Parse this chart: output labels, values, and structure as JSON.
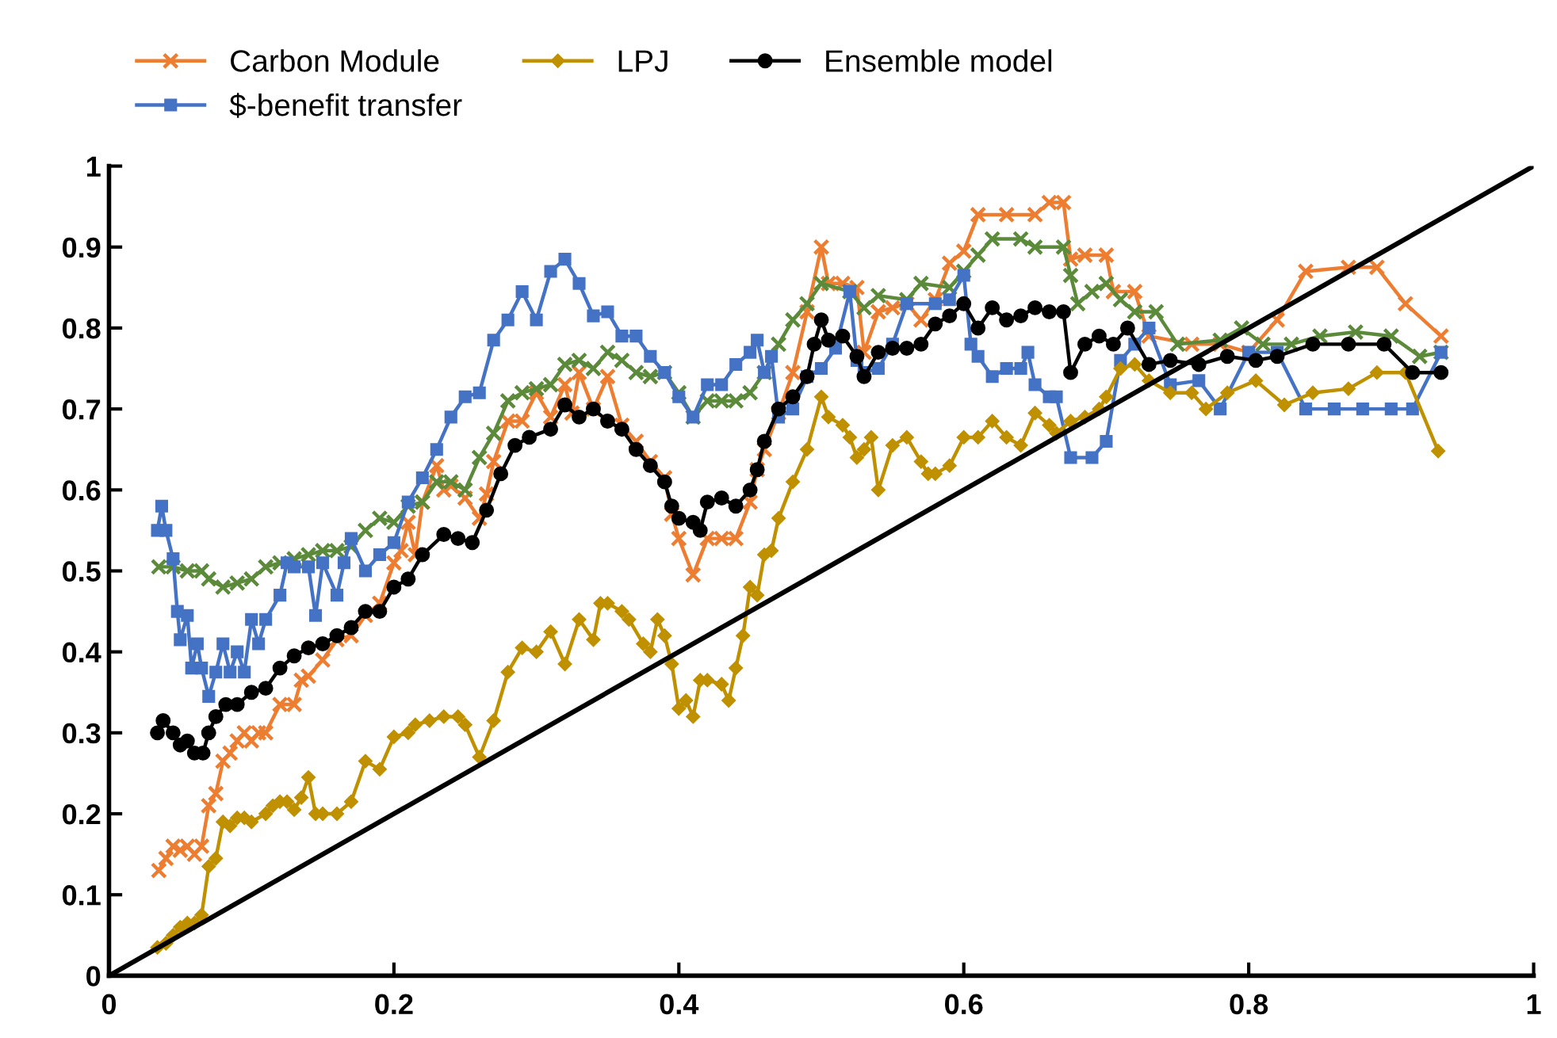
{
  "chart_data": {
    "type": "line",
    "xlim": [
      0,
      1
    ],
    "ylim": [
      0,
      1
    ],
    "xticks": [
      0,
      {
        "value": 0.2,
        "label": "0.2"
      },
      {
        "value": 0.4,
        "label": "0.4"
      },
      {
        "value": 0.6,
        "label": "0.6"
      },
      {
        "value": 0.8,
        "label": "0.8"
      },
      1
    ],
    "yticks": [
      0,
      {
        "value": 0.1,
        "label": "0.1"
      },
      {
        "value": 0.2,
        "label": "0.2"
      },
      {
        "value": 0.3,
        "label": "0.3"
      },
      {
        "value": 0.4,
        "label": "0.4"
      },
      {
        "value": 0.5,
        "label": "0.5"
      },
      {
        "value": 0.6,
        "label": "0.6"
      },
      {
        "value": 0.7,
        "label": "0.7"
      },
      {
        "value": 0.8,
        "label": "0.8"
      },
      {
        "value": 0.9,
        "label": "0.9"
      },
      1
    ],
    "grid": false,
    "legend": "top",
    "line_style": "solid",
    "series": [
      {
        "name": "Carbon Module",
        "color": "#ed7d31",
        "marker": "cross",
        "x": [
          0.035,
          0.04,
          0.045,
          0.05,
          0.055,
          0.06,
          0.065,
          0.07,
          0.075,
          0.08,
          0.085,
          0.09,
          0.095,
          0.1,
          0.105,
          0.11,
          0.12,
          0.13,
          0.135,
          0.14,
          0.15,
          0.16,
          0.17,
          0.18,
          0.19,
          0.2,
          0.205,
          0.21,
          0.215,
          0.22,
          0.23,
          0.235,
          0.24,
          0.25,
          0.26,
          0.265,
          0.27,
          0.28,
          0.29,
          0.3,
          0.31,
          0.32,
          0.325,
          0.33,
          0.34,
          0.35,
          0.36,
          0.37,
          0.38,
          0.39,
          0.395,
          0.4,
          0.41,
          0.42,
          0.43,
          0.44,
          0.45,
          0.455,
          0.46,
          0.47,
          0.48,
          0.49,
          0.5,
          0.505,
          0.515,
          0.525,
          0.53,
          0.54,
          0.55,
          0.56,
          0.57,
          0.58,
          0.59,
          0.6,
          0.61,
          0.63,
          0.65,
          0.66,
          0.67,
          0.675,
          0.685,
          0.7,
          0.705,
          0.72,
          0.73,
          0.76,
          0.78,
          0.8,
          0.82,
          0.84,
          0.87,
          0.89,
          0.91,
          0.935
        ],
        "values": [
          0.13,
          0.145,
          0.16,
          0.155,
          0.16,
          0.15,
          0.16,
          0.21,
          0.225,
          0.265,
          0.275,
          0.29,
          0.3,
          0.29,
          0.3,
          0.3,
          0.335,
          0.335,
          0.365,
          0.37,
          0.39,
          0.415,
          0.42,
          0.445,
          0.46,
          0.51,
          0.525,
          0.56,
          0.52,
          0.585,
          0.63,
          0.6,
          0.605,
          0.59,
          0.565,
          0.595,
          0.635,
          0.685,
          0.685,
          0.72,
          0.69,
          0.73,
          0.695,
          0.745,
          0.7,
          0.74,
          0.68,
          0.66,
          0.635,
          0.615,
          0.57,
          0.54,
          0.495,
          0.54,
          0.54,
          0.54,
          0.585,
          0.625,
          0.65,
          0.695,
          0.745,
          0.82,
          0.9,
          0.855,
          0.855,
          0.85,
          0.77,
          0.82,
          0.825,
          0.83,
          0.81,
          0.835,
          0.88,
          0.895,
          0.94,
          0.94,
          0.94,
          0.955,
          0.955,
          0.885,
          0.89,
          0.89,
          0.845,
          0.845,
          0.79,
          0.78,
          0.78,
          0.77,
          0.81,
          0.87,
          0.875,
          0.875,
          0.83,
          0.79
        ]
      },
      {
        "color": "#5b8a3a",
        "marker": "cross",
        "x": [
          0.035,
          0.045,
          0.055,
          0.065,
          0.07,
          0.08,
          0.09,
          0.1,
          0.11,
          0.12,
          0.13,
          0.14,
          0.15,
          0.16,
          0.17,
          0.18,
          0.19,
          0.2,
          0.21,
          0.22,
          0.23,
          0.24,
          0.25,
          0.26,
          0.27,
          0.28,
          0.29,
          0.3,
          0.31,
          0.32,
          0.33,
          0.34,
          0.35,
          0.36,
          0.37,
          0.38,
          0.39,
          0.4,
          0.41,
          0.42,
          0.43,
          0.44,
          0.45,
          0.46,
          0.47,
          0.48,
          0.49,
          0.5,
          0.52,
          0.53,
          0.54,
          0.56,
          0.57,
          0.59,
          0.6,
          0.61,
          0.62,
          0.64,
          0.65,
          0.67,
          0.675,
          0.68,
          0.69,
          0.7,
          0.71,
          0.72,
          0.735,
          0.75,
          0.78,
          0.795,
          0.81,
          0.83,
          0.85,
          0.875,
          0.9,
          0.92,
          0.935
        ],
        "values": [
          0.505,
          0.505,
          0.5,
          0.5,
          0.49,
          0.48,
          0.485,
          0.49,
          0.505,
          0.51,
          0.515,
          0.52,
          0.525,
          0.525,
          0.53,
          0.55,
          0.565,
          0.56,
          0.58,
          0.585,
          0.61,
          0.61,
          0.6,
          0.64,
          0.67,
          0.71,
          0.72,
          0.725,
          0.73,
          0.755,
          0.76,
          0.75,
          0.77,
          0.76,
          0.745,
          0.74,
          0.745,
          0.72,
          0.69,
          0.71,
          0.71,
          0.71,
          0.72,
          0.745,
          0.78,
          0.81,
          0.83,
          0.855,
          0.845,
          0.825,
          0.84,
          0.835,
          0.855,
          0.85,
          0.87,
          0.89,
          0.91,
          0.91,
          0.9,
          0.9,
          0.865,
          0.83,
          0.845,
          0.855,
          0.835,
          0.82,
          0.82,
          0.78,
          0.785,
          0.8,
          0.78,
          0.78,
          0.79,
          0.795,
          0.79,
          0.765,
          0.77
        ]
      },
      {
        "name": "$-benefit transfer",
        "color": "#4472c4",
        "marker": "square",
        "x": [
          0.034,
          0.037,
          0.04,
          0.045,
          0.048,
          0.05,
          0.055,
          0.058,
          0.062,
          0.065,
          0.07,
          0.075,
          0.08,
          0.085,
          0.09,
          0.095,
          0.1,
          0.105,
          0.11,
          0.12,
          0.125,
          0.13,
          0.14,
          0.145,
          0.15,
          0.16,
          0.165,
          0.17,
          0.18,
          0.19,
          0.2,
          0.21,
          0.22,
          0.23,
          0.24,
          0.25,
          0.26,
          0.27,
          0.28,
          0.29,
          0.3,
          0.31,
          0.32,
          0.33,
          0.34,
          0.35,
          0.36,
          0.37,
          0.38,
          0.39,
          0.4,
          0.41,
          0.42,
          0.43,
          0.44,
          0.45,
          0.455,
          0.46,
          0.465,
          0.47,
          0.48,
          0.49,
          0.5,
          0.51,
          0.52,
          0.525,
          0.53,
          0.54,
          0.55,
          0.56,
          0.58,
          0.59,
          0.6,
          0.605,
          0.61,
          0.62,
          0.63,
          0.64,
          0.645,
          0.65,
          0.66,
          0.665,
          0.675,
          0.69,
          0.7,
          0.71,
          0.72,
          0.73,
          0.745,
          0.765,
          0.78,
          0.8,
          0.82,
          0.84,
          0.86,
          0.88,
          0.9,
          0.915,
          0.935
        ],
        "values": [
          0.55,
          0.58,
          0.55,
          0.515,
          0.45,
          0.415,
          0.445,
          0.38,
          0.41,
          0.38,
          0.345,
          0.375,
          0.41,
          0.375,
          0.4,
          0.375,
          0.44,
          0.41,
          0.44,
          0.47,
          0.51,
          0.505,
          0.505,
          0.445,
          0.51,
          0.47,
          0.51,
          0.54,
          0.5,
          0.52,
          0.535,
          0.585,
          0.615,
          0.65,
          0.69,
          0.715,
          0.72,
          0.785,
          0.81,
          0.845,
          0.81,
          0.87,
          0.885,
          0.855,
          0.815,
          0.82,
          0.79,
          0.79,
          0.765,
          0.745,
          0.715,
          0.69,
          0.73,
          0.73,
          0.755,
          0.77,
          0.785,
          0.745,
          0.765,
          0.69,
          0.7,
          0.74,
          0.75,
          0.775,
          0.845,
          0.76,
          0.745,
          0.75,
          0.78,
          0.83,
          0.83,
          0.835,
          0.865,
          0.78,
          0.765,
          0.74,
          0.75,
          0.75,
          0.77,
          0.73,
          0.715,
          0.715,
          0.64,
          0.64,
          0.66,
          0.76,
          0.78,
          0.8,
          0.73,
          0.735,
          0.7,
          0.77,
          0.77,
          0.7,
          0.7,
          0.7,
          0.7,
          0.7,
          0.77
        ]
      },
      {
        "name": "LPJ",
        "color": "#bf9000",
        "marker": "diamond",
        "x": [
          0.034,
          0.04,
          0.045,
          0.05,
          0.055,
          0.06,
          0.065,
          0.07,
          0.075,
          0.08,
          0.085,
          0.09,
          0.095,
          0.1,
          0.11,
          0.115,
          0.12,
          0.125,
          0.13,
          0.135,
          0.14,
          0.145,
          0.15,
          0.16,
          0.17,
          0.18,
          0.19,
          0.2,
          0.21,
          0.215,
          0.225,
          0.235,
          0.245,
          0.25,
          0.26,
          0.27,
          0.28,
          0.29,
          0.3,
          0.31,
          0.32,
          0.33,
          0.34,
          0.345,
          0.35,
          0.36,
          0.365,
          0.375,
          0.38,
          0.385,
          0.39,
          0.395,
          0.4,
          0.405,
          0.41,
          0.415,
          0.42,
          0.43,
          0.435,
          0.44,
          0.445,
          0.45,
          0.455,
          0.46,
          0.465,
          0.47,
          0.48,
          0.49,
          0.5,
          0.505,
          0.515,
          0.52,
          0.525,
          0.53,
          0.535,
          0.54,
          0.55,
          0.56,
          0.57,
          0.575,
          0.58,
          0.59,
          0.6,
          0.61,
          0.62,
          0.63,
          0.64,
          0.65,
          0.66,
          0.665,
          0.675,
          0.685,
          0.695,
          0.7,
          0.71,
          0.72,
          0.73,
          0.745,
          0.76,
          0.77,
          0.785,
          0.805,
          0.825,
          0.845,
          0.87,
          0.89,
          0.91,
          0.933
        ],
        "values": [
          0.035,
          0.04,
          0.05,
          0.06,
          0.065,
          0.065,
          0.075,
          0.135,
          0.145,
          0.19,
          0.185,
          0.195,
          0.195,
          0.19,
          0.2,
          0.21,
          0.215,
          0.215,
          0.205,
          0.22,
          0.245,
          0.2,
          0.2,
          0.2,
          0.215,
          0.265,
          0.255,
          0.295,
          0.3,
          0.31,
          0.315,
          0.32,
          0.32,
          0.31,
          0.27,
          0.315,
          0.375,
          0.405,
          0.4,
          0.425,
          0.385,
          0.44,
          0.415,
          0.46,
          0.46,
          0.45,
          0.44,
          0.41,
          0.4,
          0.44,
          0.42,
          0.385,
          0.33,
          0.34,
          0.32,
          0.365,
          0.365,
          0.36,
          0.34,
          0.38,
          0.42,
          0.48,
          0.47,
          0.52,
          0.525,
          0.565,
          0.61,
          0.65,
          0.715,
          0.69,
          0.68,
          0.665,
          0.64,
          0.65,
          0.665,
          0.6,
          0.655,
          0.665,
          0.635,
          0.62,
          0.62,
          0.63,
          0.665,
          0.665,
          0.685,
          0.665,
          0.655,
          0.695,
          0.68,
          0.67,
          0.685,
          0.69,
          0.7,
          0.715,
          0.75,
          0.755,
          0.735,
          0.72,
          0.72,
          0.7,
          0.72,
          0.735,
          0.705,
          0.72,
          0.725,
          0.745,
          0.745,
          0.648
        ]
      },
      {
        "name": "Ensemble model",
        "color": "#000000",
        "marker": "circle",
        "x": [
          0.034,
          0.038,
          0.045,
          0.05,
          0.055,
          0.06,
          0.066,
          0.07,
          0.075,
          0.082,
          0.09,
          0.1,
          0.11,
          0.12,
          0.13,
          0.14,
          0.15,
          0.16,
          0.17,
          0.18,
          0.19,
          0.2,
          0.21,
          0.22,
          0.235,
          0.245,
          0.255,
          0.265,
          0.275,
          0.285,
          0.295,
          0.31,
          0.32,
          0.33,
          0.34,
          0.35,
          0.36,
          0.37,
          0.38,
          0.39,
          0.395,
          0.4,
          0.41,
          0.415,
          0.42,
          0.43,
          0.44,
          0.45,
          0.455,
          0.46,
          0.47,
          0.48,
          0.49,
          0.495,
          0.5,
          0.505,
          0.515,
          0.525,
          0.53,
          0.54,
          0.55,
          0.56,
          0.57,
          0.58,
          0.59,
          0.6,
          0.61,
          0.62,
          0.63,
          0.64,
          0.65,
          0.66,
          0.67,
          0.675,
          0.685,
          0.695,
          0.705,
          0.715,
          0.73,
          0.745,
          0.765,
          0.785,
          0.805,
          0.82,
          0.845,
          0.87,
          0.895,
          0.915,
          0.935
        ],
        "values": [
          0.3,
          0.315,
          0.3,
          0.285,
          0.29,
          0.275,
          0.275,
          0.3,
          0.32,
          0.335,
          0.335,
          0.35,
          0.355,
          0.38,
          0.395,
          0.405,
          0.41,
          0.42,
          0.43,
          0.45,
          0.45,
          0.48,
          0.49,
          0.52,
          0.545,
          0.54,
          0.535,
          0.575,
          0.62,
          0.655,
          0.665,
          0.675,
          0.705,
          0.69,
          0.7,
          0.685,
          0.675,
          0.65,
          0.63,
          0.61,
          0.58,
          0.565,
          0.56,
          0.55,
          0.585,
          0.59,
          0.58,
          0.6,
          0.625,
          0.66,
          0.7,
          0.715,
          0.74,
          0.78,
          0.81,
          0.785,
          0.79,
          0.765,
          0.74,
          0.77,
          0.775,
          0.775,
          0.78,
          0.805,
          0.815,
          0.83,
          0.8,
          0.825,
          0.81,
          0.815,
          0.825,
          0.82,
          0.82,
          0.745,
          0.78,
          0.79,
          0.78,
          0.8,
          0.755,
          0.76,
          0.755,
          0.765,
          0.76,
          0.765,
          0.78,
          0.78,
          0.78,
          0.745,
          0.745
        ]
      },
      {
        "color": "#000000",
        "marker": "none",
        "x": [
          0,
          1
        ],
        "values": [
          0,
          1
        ]
      }
    ]
  }
}
